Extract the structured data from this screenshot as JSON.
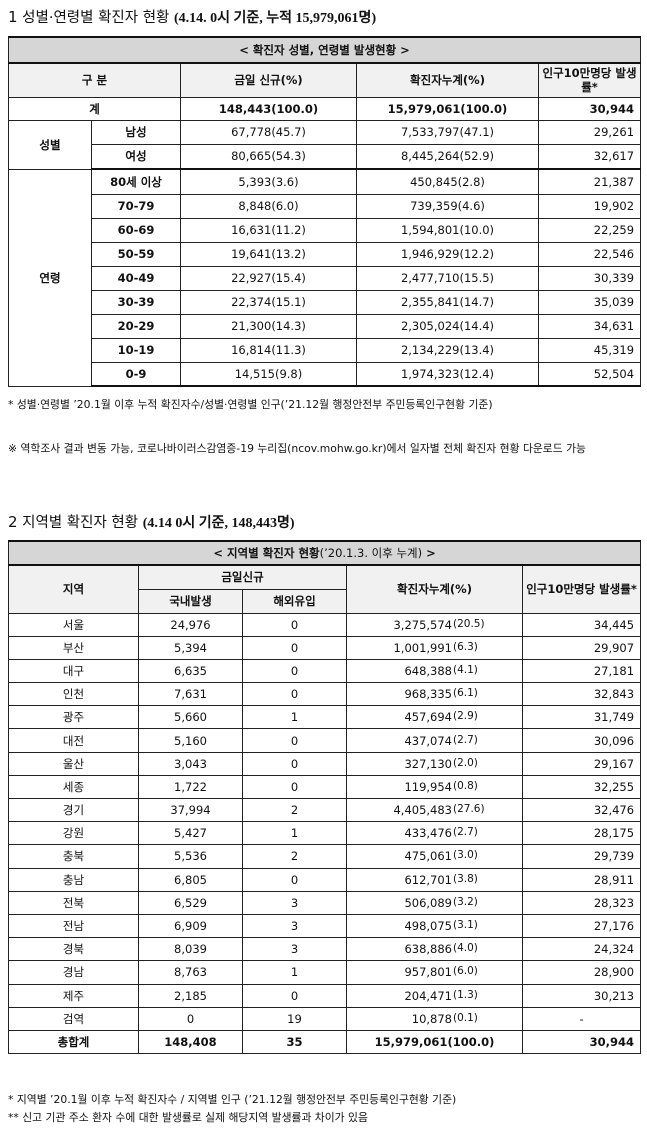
{
  "section1": {
    "number": "1",
    "title": "성별·연령별 확진자 현황",
    "subtitle": "(4.14. 0시 기준, 누적 15,979,061명)",
    "caption": "< 확진자 성별, 연령별 발생현황 >",
    "headers": {
      "category": "구 분",
      "today_new": "금일 신규(%)",
      "cumulative": "확진자누계(%)",
      "rate": "인구10만명당 발생률*"
    },
    "total": {
      "label": "계",
      "today_new": "148,443(100.0)",
      "cumulative": "15,979,061(100.0)",
      "rate": "30,944"
    },
    "gender_label": "성별",
    "gender": [
      {
        "label": "남성",
        "today_new": "67,778(45.7)",
        "cumulative": "7,533,797(47.1)",
        "rate": "29,261"
      },
      {
        "label": "여성",
        "today_new": "80,665(54.3)",
        "cumulative": "8,445,264(52.9)",
        "rate": "32,617"
      }
    ],
    "age_label": "연령",
    "age": [
      {
        "label": "80세 이상",
        "today_new": "5,393(3.6)",
        "cumulative": "450,845(2.8)",
        "rate": "21,387"
      },
      {
        "label": "70-79",
        "today_new": "8,848(6.0)",
        "cumulative": "739,359(4.6)",
        "rate": "19,902"
      },
      {
        "label": "60-69",
        "today_new": "16,631(11.2)",
        "cumulative": "1,594,801(10.0)",
        "rate": "22,259"
      },
      {
        "label": "50-59",
        "today_new": "19,641(13.2)",
        "cumulative": "1,946,929(12.2)",
        "rate": "22,546"
      },
      {
        "label": "40-49",
        "today_new": "22,927(15.4)",
        "cumulative": "2,477,710(15.5)",
        "rate": "30,339"
      },
      {
        "label": "30-39",
        "today_new": "22,374(15.1)",
        "cumulative": "2,355,841(14.7)",
        "rate": "35,039"
      },
      {
        "label": "20-29",
        "today_new": "21,300(14.3)",
        "cumulative": "2,305,024(14.4)",
        "rate": "34,631"
      },
      {
        "label": "10-19",
        "today_new": "16,814(11.3)",
        "cumulative": "2,134,229(13.4)",
        "rate": "45,319"
      },
      {
        "label": "0-9",
        "today_new": "14,515(9.8)",
        "cumulative": "1,974,323(12.4)",
        "rate": "52,504"
      }
    ],
    "notes": [
      "* 성별·연령별 ’20.1월 이후 누적 확진자수/성별·연령별 인구(’21.12월 행정안전부 주민등록인구현황 기준)",
      "※ 역학조사 결과 변동 가능, 코로나바이러스감염증-19 누리집(ncov.mohw.go.kr)에서 일자별 전체 확진자 현황 다운로드 가능"
    ]
  },
  "section2": {
    "number": "2",
    "title": "지역별 확진자 현황",
    "subtitle": "(4.14 0시 기준, 148,443명)",
    "caption_main": "< 지역별 확진자 현황",
    "caption_paren": "(’20.1.3. 이후 누계)",
    "caption_end": " >",
    "headers": {
      "region": "지역",
      "today_new": "금일신규",
      "domestic": "국내발생",
      "overseas": "해외유입",
      "cumulative": "확진자누계(%)",
      "rate": "인구10만명당 발생률*"
    },
    "rows": [
      {
        "region": "서울",
        "domestic": "24,976",
        "overseas": "0",
        "cum": "3,275,574",
        "pct": "(20.5)",
        "rate": "34,445"
      },
      {
        "region": "부산",
        "domestic": "5,394",
        "overseas": "0",
        "cum": "1,001,991",
        "pct": "(6.3)",
        "rate": "29,907"
      },
      {
        "region": "대구",
        "domestic": "6,635",
        "overseas": "0",
        "cum": "648,388",
        "pct": "(4.1)",
        "rate": "27,181"
      },
      {
        "region": "인천",
        "domestic": "7,631",
        "overseas": "0",
        "cum": "968,335",
        "pct": "(6.1)",
        "rate": "32,843"
      },
      {
        "region": "광주",
        "domestic": "5,660",
        "overseas": "1",
        "cum": "457,694",
        "pct": "(2.9)",
        "rate": "31,749"
      },
      {
        "region": "대전",
        "domestic": "5,160",
        "overseas": "0",
        "cum": "437,074",
        "pct": "(2.7)",
        "rate": "30,096"
      },
      {
        "region": "울산",
        "domestic": "3,043",
        "overseas": "0",
        "cum": "327,130",
        "pct": "(2.0)",
        "rate": "29,167"
      },
      {
        "region": "세종",
        "domestic": "1,722",
        "overseas": "0",
        "cum": "119,954",
        "pct": "(0.8)",
        "rate": "32,255"
      },
      {
        "region": "경기",
        "domestic": "37,994",
        "overseas": "2",
        "cum": "4,405,483",
        "pct": "(27.6)",
        "rate": "32,476"
      },
      {
        "region": "강원",
        "domestic": "5,427",
        "overseas": "1",
        "cum": "433,476",
        "pct": "(2.7)",
        "rate": "28,175"
      },
      {
        "region": "충북",
        "domestic": "5,536",
        "overseas": "2",
        "cum": "475,061",
        "pct": "(3.0)",
        "rate": "29,739"
      },
      {
        "region": "충남",
        "domestic": "6,805",
        "overseas": "0",
        "cum": "612,701",
        "pct": "(3.8)",
        "rate": "28,911"
      },
      {
        "region": "전북",
        "domestic": "6,529",
        "overseas": "3",
        "cum": "506,089",
        "pct": "(3.2)",
        "rate": "28,323"
      },
      {
        "region": "전남",
        "domestic": "6,909",
        "overseas": "3",
        "cum": "498,075",
        "pct": "(3.1)",
        "rate": "27,176"
      },
      {
        "region": "경북",
        "domestic": "8,039",
        "overseas": "3",
        "cum": "638,886",
        "pct": "(4.0)",
        "rate": "24,324"
      },
      {
        "region": "경남",
        "domestic": "8,763",
        "overseas": "1",
        "cum": "957,801",
        "pct": "(6.0)",
        "rate": "28,900"
      },
      {
        "region": "제주",
        "domestic": "2,185",
        "overseas": "0",
        "cum": "204,471",
        "pct": "(1.3)",
        "rate": "30,213"
      },
      {
        "region": "검역",
        "domestic": "0",
        "overseas": "19",
        "cum": "10,878",
        "pct": "(0.1)",
        "rate": "-"
      }
    ],
    "total": {
      "region": "총합계",
      "domestic": "148,408",
      "overseas": "35",
      "cum": "15,979,061",
      "pct": "(100.0)",
      "rate": "30,944"
    },
    "notes": [
      "* 지역별 ’20.1월 이후 누적 확진자수 / 지역별 인구 (’21.12월 행정안전부 주민등록인구현황 기준)",
      "** 신고 기관 주소 환자 수에 대한 발생률로 실제 해당지역 발생률과 차이가 있음"
    ]
  }
}
